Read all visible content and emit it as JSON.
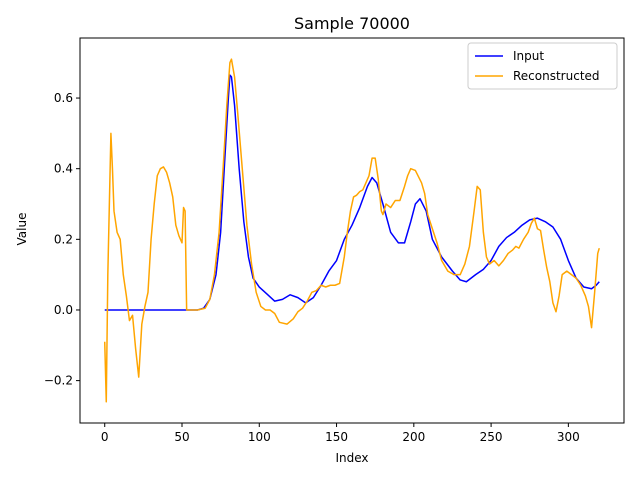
{
  "chart_data": {
    "type": "line",
    "title": "Sample 70000",
    "xlabel": "Index",
    "ylabel": "Value",
    "xlim": [
      -16,
      336
    ],
    "ylim": [
      -0.32,
      0.77
    ],
    "xticks": [
      0,
      50,
      100,
      150,
      200,
      250,
      300
    ],
    "xtick_labels": [
      "0",
      "50",
      "100",
      "150",
      "200",
      "250",
      "300"
    ],
    "yticks": [
      -0.2,
      0.0,
      0.2,
      0.4,
      0.6
    ],
    "ytick_labels": [
      "−0.2",
      "0.0",
      "0.2",
      "0.4",
      "0.6"
    ],
    "legend_position": "top-right",
    "series": [
      {
        "name": "Input",
        "color": "#0000ff",
        "points": [
          [
            0,
            0
          ],
          [
            10,
            0
          ],
          [
            20,
            0
          ],
          [
            30,
            0
          ],
          [
            40,
            0
          ],
          [
            50,
            0
          ],
          [
            60,
            0
          ],
          [
            64,
            0.005
          ],
          [
            68,
            0.03
          ],
          [
            72,
            0.1
          ],
          [
            75,
            0.22
          ],
          [
            78,
            0.45
          ],
          [
            80,
            0.6
          ],
          [
            81,
            0.665
          ],
          [
            82,
            0.66
          ],
          [
            84,
            0.58
          ],
          [
            87,
            0.4
          ],
          [
            90,
            0.25
          ],
          [
            93,
            0.15
          ],
          [
            96,
            0.09
          ],
          [
            100,
            0.065
          ],
          [
            105,
            0.045
          ],
          [
            110,
            0.025
          ],
          [
            115,
            0.03
          ],
          [
            120,
            0.043
          ],
          [
            125,
            0.035
          ],
          [
            130,
            0.02
          ],
          [
            135,
            0.035
          ],
          [
            140,
            0.07
          ],
          [
            145,
            0.11
          ],
          [
            150,
            0.14
          ],
          [
            155,
            0.2
          ],
          [
            160,
            0.24
          ],
          [
            165,
            0.29
          ],
          [
            170,
            0.35
          ],
          [
            173,
            0.375
          ],
          [
            176,
            0.36
          ],
          [
            180,
            0.3
          ],
          [
            185,
            0.22
          ],
          [
            190,
            0.19
          ],
          [
            194,
            0.19
          ],
          [
            198,
            0.25
          ],
          [
            201,
            0.3
          ],
          [
            204,
            0.315
          ],
          [
            208,
            0.28
          ],
          [
            212,
            0.2
          ],
          [
            218,
            0.15
          ],
          [
            225,
            0.11
          ],
          [
            230,
            0.085
          ],
          [
            234,
            0.08
          ],
          [
            240,
            0.1
          ],
          [
            245,
            0.115
          ],
          [
            250,
            0.14
          ],
          [
            255,
            0.18
          ],
          [
            260,
            0.205
          ],
          [
            265,
            0.22
          ],
          [
            270,
            0.24
          ],
          [
            275,
            0.255
          ],
          [
            280,
            0.26
          ],
          [
            285,
            0.25
          ],
          [
            290,
            0.235
          ],
          [
            295,
            0.2
          ],
          [
            300,
            0.14
          ],
          [
            305,
            0.09
          ],
          [
            310,
            0.065
          ],
          [
            315,
            0.06
          ],
          [
            318,
            0.07
          ],
          [
            320,
            0.08
          ]
        ]
      },
      {
        "name": "Reconstructed",
        "color": "#ffa500",
        "points": [
          [
            0,
            -0.09
          ],
          [
            1,
            -0.26
          ],
          [
            2,
            0.1
          ],
          [
            3,
            0.3
          ],
          [
            4,
            0.5
          ],
          [
            5,
            0.4
          ],
          [
            6,
            0.28
          ],
          [
            8,
            0.22
          ],
          [
            10,
            0.2
          ],
          [
            12,
            0.1
          ],
          [
            14,
            0.04
          ],
          [
            16,
            -0.03
          ],
          [
            18,
            -0.015
          ],
          [
            20,
            -0.11
          ],
          [
            22,
            -0.19
          ],
          [
            24,
            -0.04
          ],
          [
            26,
            0.01
          ],
          [
            28,
            0.05
          ],
          [
            30,
            0.2
          ],
          [
            32,
            0.3
          ],
          [
            34,
            0.38
          ],
          [
            36,
            0.4
          ],
          [
            38,
            0.405
          ],
          [
            40,
            0.39
          ],
          [
            42,
            0.36
          ],
          [
            44,
            0.32
          ],
          [
            46,
            0.24
          ],
          [
            48,
            0.21
          ],
          [
            50,
            0.19
          ],
          [
            51,
            0.29
          ],
          [
            52,
            0.28
          ],
          [
            53,
            0.0
          ],
          [
            55,
            0.0
          ],
          [
            60,
            0.0
          ],
          [
            65,
            0.005
          ],
          [
            68,
            0.03
          ],
          [
            71,
            0.1
          ],
          [
            74,
            0.22
          ],
          [
            77,
            0.43
          ],
          [
            79,
            0.58
          ],
          [
            81,
            0.7
          ],
          [
            82,
            0.71
          ],
          [
            84,
            0.66
          ],
          [
            86,
            0.56
          ],
          [
            89,
            0.4
          ],
          [
            92,
            0.24
          ],
          [
            95,
            0.13
          ],
          [
            98,
            0.05
          ],
          [
            101,
            0.01
          ],
          [
            104,
            0.0
          ],
          [
            107,
            0.0
          ],
          [
            110,
            -0.01
          ],
          [
            113,
            -0.035
          ],
          [
            118,
            -0.04
          ],
          [
            122,
            -0.025
          ],
          [
            125,
            -0.005
          ],
          [
            128,
            0.005
          ],
          [
            131,
            0.025
          ],
          [
            134,
            0.05
          ],
          [
            137,
            0.055
          ],
          [
            140,
            0.07
          ],
          [
            143,
            0.065
          ],
          [
            146,
            0.07
          ],
          [
            149,
            0.07
          ],
          [
            152,
            0.075
          ],
          [
            155,
            0.15
          ],
          [
            157,
            0.22
          ],
          [
            159,
            0.28
          ],
          [
            161,
            0.32
          ],
          [
            163,
            0.325
          ],
          [
            165,
            0.335
          ],
          [
            167,
            0.34
          ],
          [
            169,
            0.36
          ],
          [
            171,
            0.38
          ],
          [
            173,
            0.43
          ],
          [
            175,
            0.43
          ],
          [
            177,
            0.37
          ],
          [
            179,
            0.28
          ],
          [
            180,
            0.27
          ],
          [
            182,
            0.3
          ],
          [
            185,
            0.29
          ],
          [
            188,
            0.31
          ],
          [
            191,
            0.31
          ],
          [
            194,
            0.35
          ],
          [
            196,
            0.38
          ],
          [
            198,
            0.4
          ],
          [
            201,
            0.395
          ],
          [
            205,
            0.36
          ],
          [
            207,
            0.33
          ],
          [
            209,
            0.27
          ],
          [
            212,
            0.23
          ],
          [
            215,
            0.19
          ],
          [
            218,
            0.14
          ],
          [
            222,
            0.11
          ],
          [
            226,
            0.1
          ],
          [
            230,
            0.1
          ],
          [
            233,
            0.13
          ],
          [
            236,
            0.18
          ],
          [
            239,
            0.28
          ],
          [
            241,
            0.35
          ],
          [
            243,
            0.34
          ],
          [
            245,
            0.22
          ],
          [
            247,
            0.15
          ],
          [
            249,
            0.13
          ],
          [
            252,
            0.14
          ],
          [
            255,
            0.125
          ],
          [
            258,
            0.14
          ],
          [
            261,
            0.16
          ],
          [
            264,
            0.17
          ],
          [
            266,
            0.18
          ],
          [
            268,
            0.175
          ],
          [
            271,
            0.2
          ],
          [
            274,
            0.22
          ],
          [
            276,
            0.245
          ],
          [
            278,
            0.26
          ],
          [
            280,
            0.23
          ],
          [
            282,
            0.225
          ],
          [
            284,
            0.17
          ],
          [
            286,
            0.12
          ],
          [
            288,
            0.08
          ],
          [
            290,
            0.02
          ],
          [
            292,
            -0.005
          ],
          [
            294,
            0.04
          ],
          [
            296,
            0.1
          ],
          [
            299,
            0.11
          ],
          [
            302,
            0.1
          ],
          [
            305,
            0.09
          ],
          [
            308,
            0.07
          ],
          [
            311,
            0.04
          ],
          [
            313,
            0.01
          ],
          [
            315,
            -0.05
          ],
          [
            317,
            0.05
          ],
          [
            319,
            0.16
          ],
          [
            320,
            0.175
          ]
        ]
      }
    ]
  }
}
